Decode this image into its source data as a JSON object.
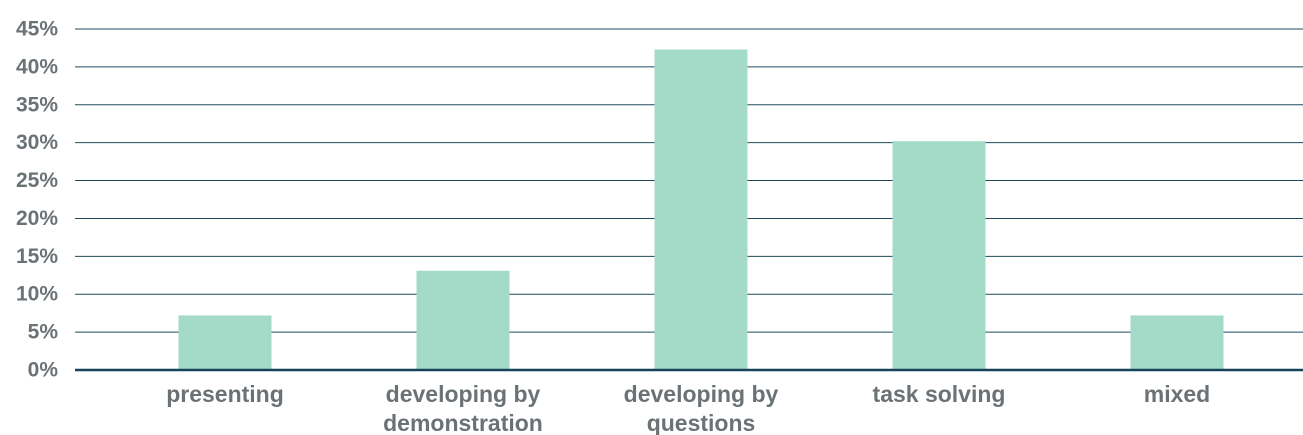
{
  "chart_data": {
    "type": "bar",
    "categories": [
      [
        "presenting"
      ],
      [
        "developing by",
        "demonstration"
      ],
      [
        "developing by",
        "questions"
      ],
      [
        "task solving"
      ],
      [
        "mixed"
      ]
    ],
    "values": [
      7.2,
      13.1,
      42.3,
      30.2,
      7.2
    ],
    "y_ticks": [
      "0%",
      "5%",
      "10%",
      "15%",
      "20%",
      "25%",
      "30%",
      "35%",
      "40%",
      "45%"
    ],
    "ylim": [
      0,
      45
    ],
    "title": "",
    "xlabel": "",
    "ylabel": "",
    "grid": true,
    "legend": "none",
    "colors": {
      "bar": "#a3dbc8",
      "grid": "#1f4a5e",
      "axis": "#17435a",
      "text": "#6b7276"
    }
  }
}
